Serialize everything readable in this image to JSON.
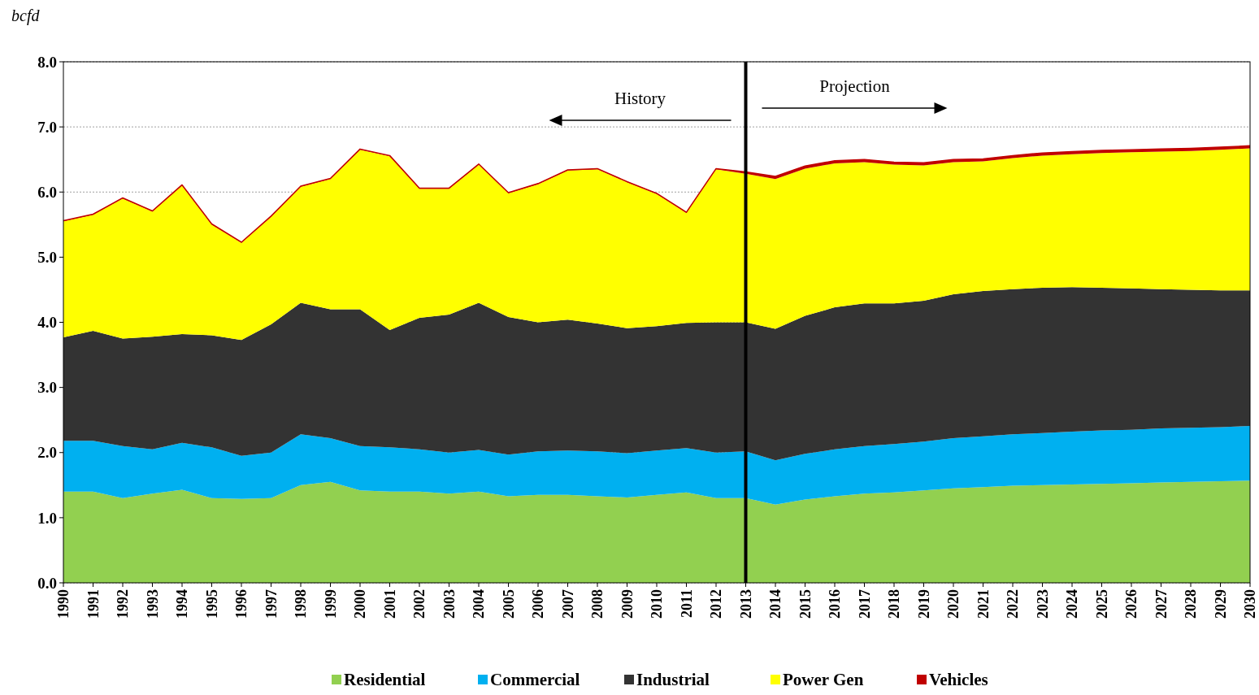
{
  "chart_data": {
    "type": "area",
    "stacked": true,
    "ylabel": "bcfd",
    "categories": [
      "1990",
      "1991",
      "1992",
      "1993",
      "1994",
      "1995",
      "1996",
      "1997",
      "1998",
      "1999",
      "2000",
      "2001",
      "2002",
      "2003",
      "2004",
      "2005",
      "2006",
      "2007",
      "2008",
      "2009",
      "2010",
      "2011",
      "2012",
      "2013",
      "2014",
      "2015",
      "2016",
      "2017",
      "2018",
      "2019",
      "2020",
      "2021",
      "2022",
      "2023",
      "2024",
      "2025",
      "2026",
      "2027",
      "2028",
      "2029",
      "2030"
    ],
    "series": [
      {
        "name": "Residential",
        "color": "#92d050",
        "values": [
          1.4,
          1.4,
          1.3,
          1.37,
          1.43,
          1.3,
          1.29,
          1.3,
          1.5,
          1.55,
          1.42,
          1.4,
          1.4,
          1.37,
          1.4,
          1.33,
          1.35,
          1.35,
          1.33,
          1.31,
          1.35,
          1.39,
          1.3,
          1.3,
          1.2,
          1.28,
          1.33,
          1.37,
          1.39,
          1.42,
          1.45,
          1.47,
          1.49,
          1.5,
          1.51,
          1.52,
          1.53,
          1.54,
          1.55,
          1.56,
          1.57
        ]
      },
      {
        "name": "Commercial",
        "color": "#00b0f0",
        "values": [
          0.78,
          0.78,
          0.8,
          0.68,
          0.72,
          0.78,
          0.66,
          0.7,
          0.78,
          0.67,
          0.68,
          0.68,
          0.65,
          0.63,
          0.64,
          0.64,
          0.67,
          0.68,
          0.69,
          0.68,
          0.68,
          0.68,
          0.7,
          0.72,
          0.68,
          0.7,
          0.72,
          0.73,
          0.74,
          0.75,
          0.77,
          0.78,
          0.79,
          0.8,
          0.81,
          0.82,
          0.82,
          0.83,
          0.83,
          0.83,
          0.84
        ]
      },
      {
        "name": "Industrial",
        "color": "#333333",
        "values": [
          1.59,
          1.69,
          1.65,
          1.73,
          1.67,
          1.72,
          1.78,
          1.97,
          2.02,
          1.98,
          2.1,
          1.8,
          2.02,
          2.12,
          2.26,
          2.11,
          1.98,
          2.01,
          1.96,
          1.92,
          1.91,
          1.92,
          2.0,
          1.98,
          2.02,
          2.12,
          2.18,
          2.19,
          2.16,
          2.16,
          2.21,
          2.23,
          2.23,
          2.23,
          2.22,
          2.19,
          2.17,
          2.14,
          2.12,
          2.1,
          2.08
        ]
      },
      {
        "name": "Power Gen",
        "color": "#ffff00",
        "values": [
          1.78,
          1.78,
          2.15,
          1.92,
          2.28,
          1.7,
          1.49,
          1.65,
          1.78,
          2.0,
          2.45,
          2.67,
          1.98,
          1.93,
          2.12,
          1.9,
          2.12,
          2.29,
          2.37,
          2.24,
          2.03,
          1.69,
          2.35,
          2.28,
          2.3,
          2.26,
          2.21,
          2.17,
          2.13,
          2.08,
          2.03,
          1.99,
          2.01,
          2.03,
          2.04,
          2.07,
          2.09,
          2.11,
          2.13,
          2.16,
          2.18
        ]
      },
      {
        "name": "Vehicles",
        "color": "#c00000",
        "values": [
          0.01,
          0.01,
          0.01,
          0.01,
          0.01,
          0.01,
          0.01,
          0.01,
          0.01,
          0.01,
          0.01,
          0.01,
          0.01,
          0.01,
          0.01,
          0.01,
          0.01,
          0.01,
          0.01,
          0.01,
          0.01,
          0.01,
          0.01,
          0.03,
          0.04,
          0.04,
          0.04,
          0.04,
          0.04,
          0.04,
          0.04,
          0.04,
          0.04,
          0.04,
          0.04,
          0.04,
          0.04,
          0.04,
          0.04,
          0.04,
          0.04
        ]
      }
    ],
    "ylim": [
      0,
      8
    ],
    "yticks": [
      {
        "value": 0,
        "label": "0.0"
      },
      {
        "value": 1,
        "label": "1.0"
      },
      {
        "value": 2,
        "label": "2.0"
      },
      {
        "value": 3,
        "label": "3.0"
      },
      {
        "value": 4,
        "label": "4.0"
      },
      {
        "value": 5,
        "label": "5.0"
      },
      {
        "value": 6,
        "label": "6.0"
      },
      {
        "value": 7,
        "label": "7.0"
      },
      {
        "value": 8,
        "label": "8.0"
      }
    ],
    "grid": "y",
    "legend": "bottom",
    "ref_lines": [
      {
        "axis": "x",
        "value": "2013",
        "color": "#000000"
      }
    ],
    "annotations": [
      "History",
      "Projection"
    ]
  }
}
